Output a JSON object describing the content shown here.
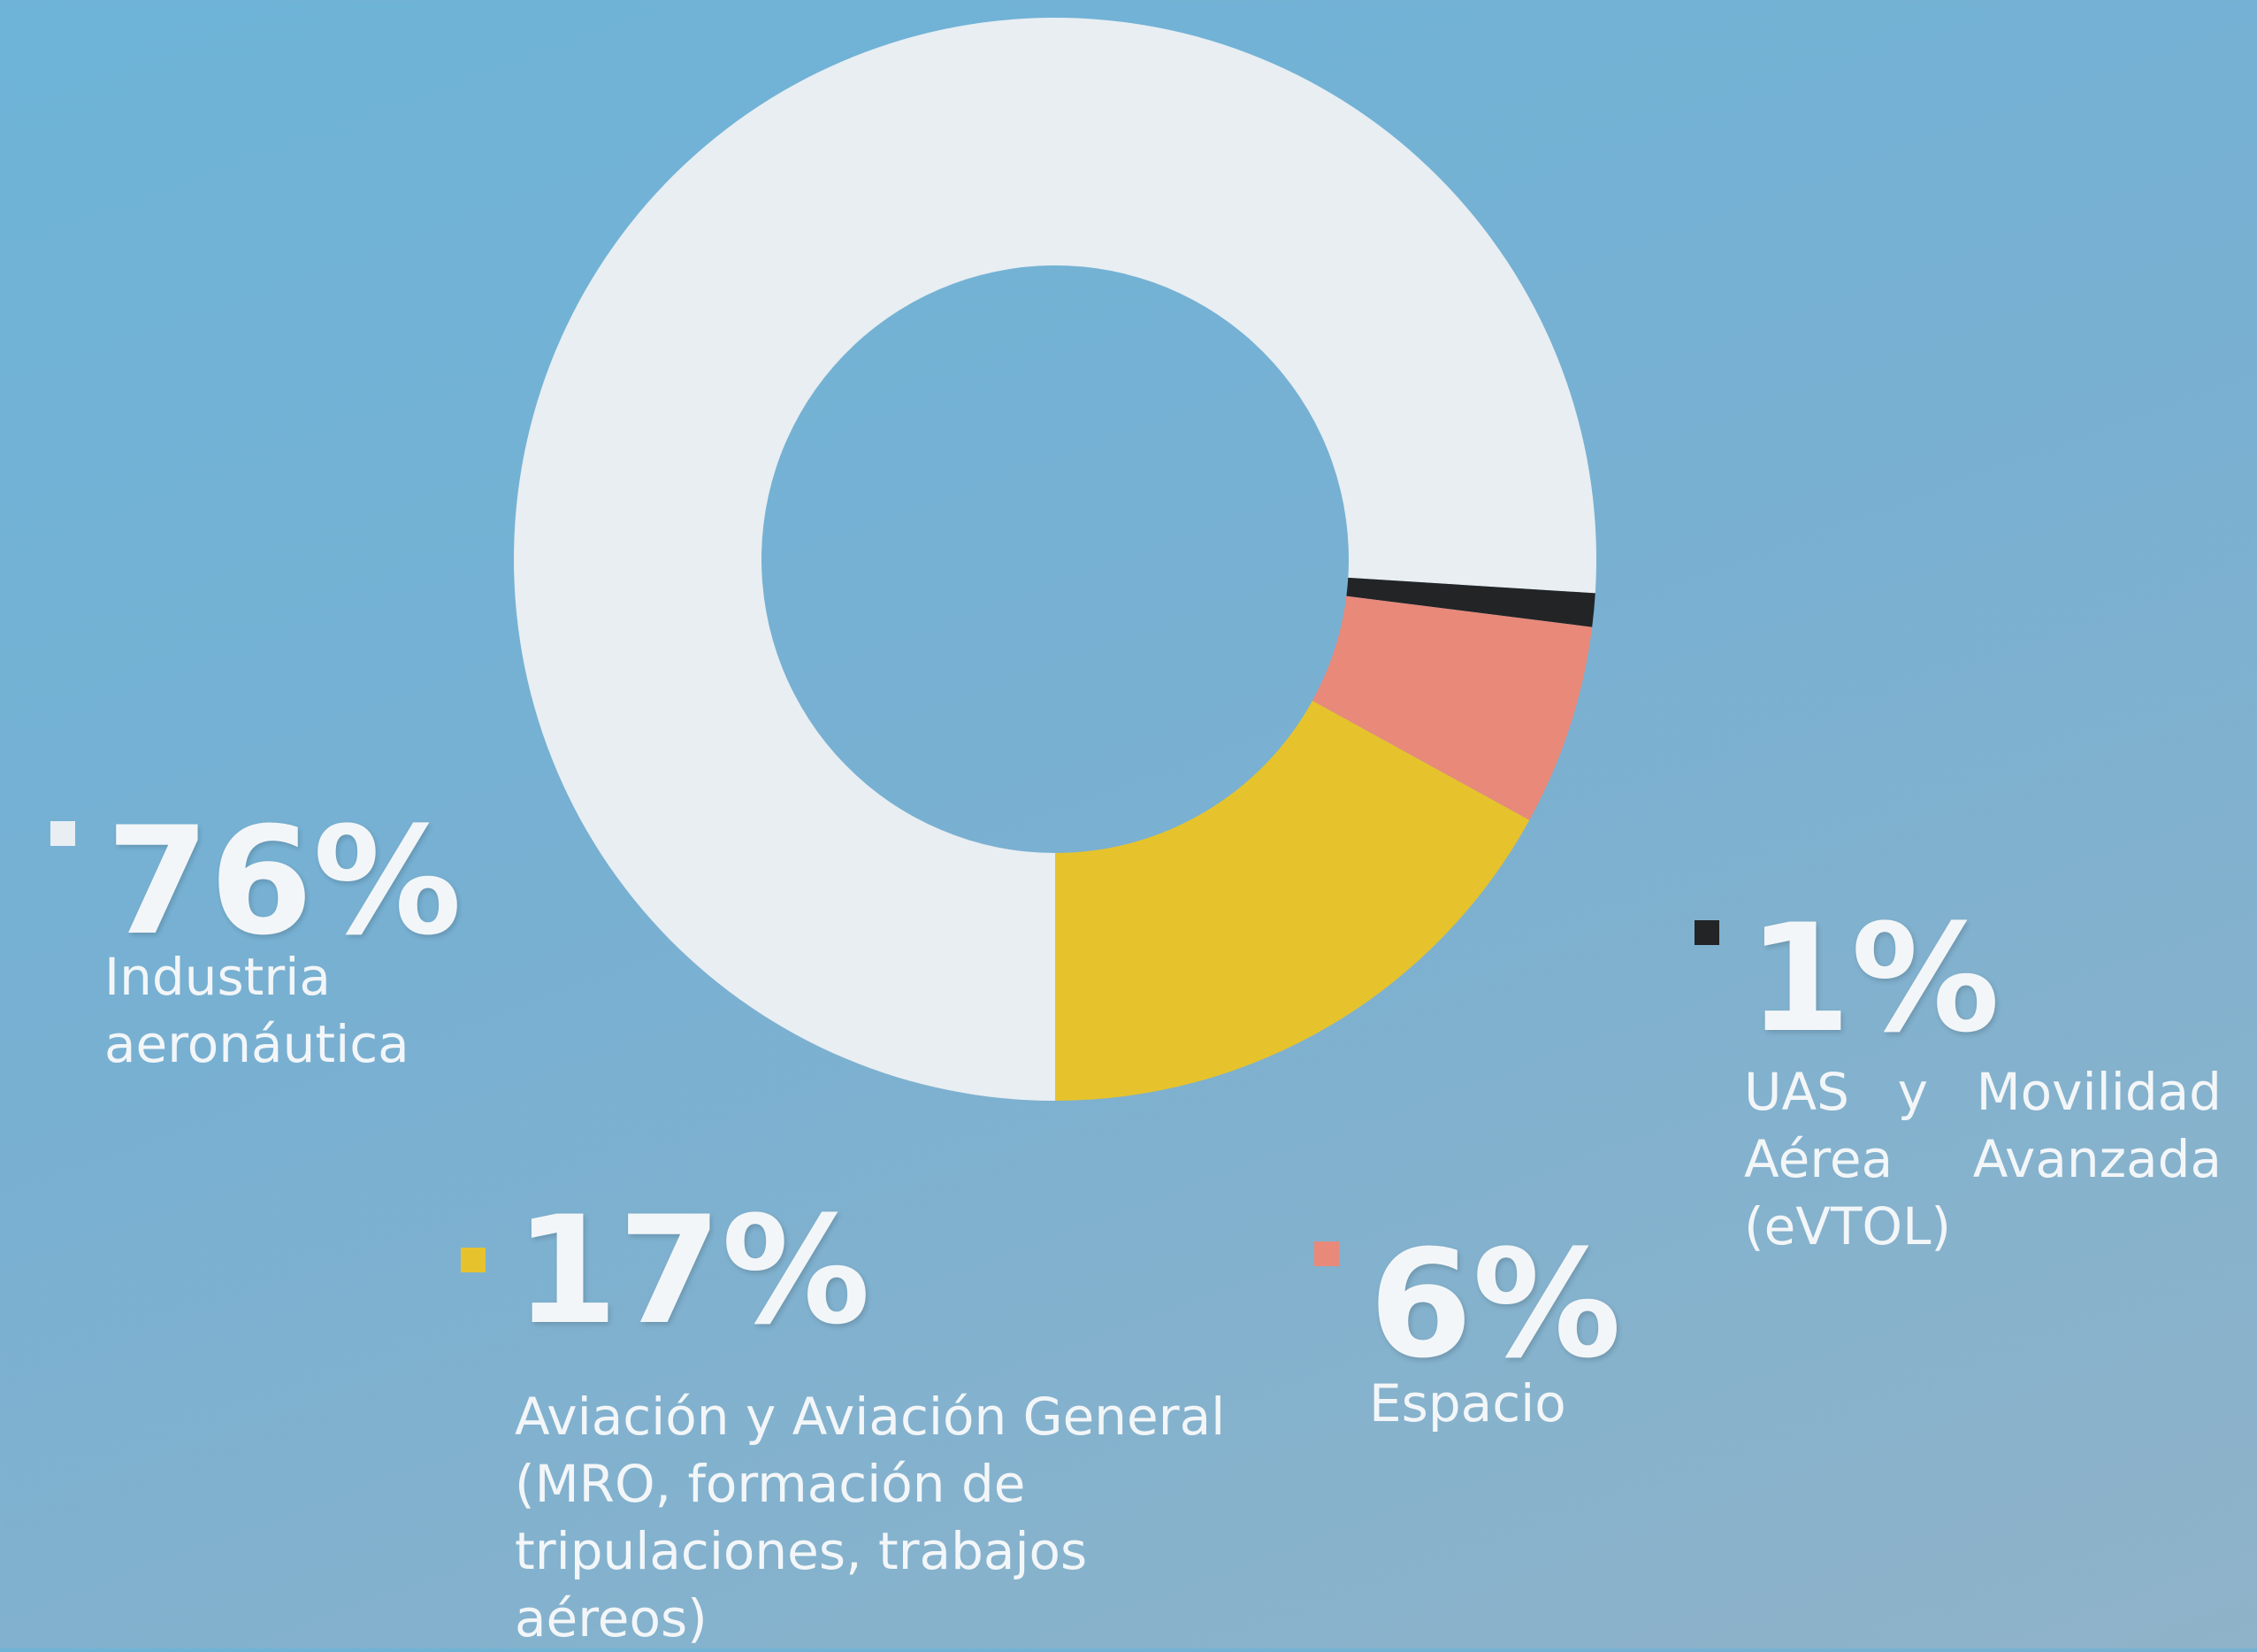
{
  "chart_data": {
    "type": "donut",
    "categories": [
      "Industria aeronáutica",
      "UAS y Movilidad Aérea Avanzada (eVTOL)",
      "Espacio",
      "Aviación y Aviación General (MRO, formación de tripulaciones, trabajos aéreos)"
    ],
    "values": [
      76,
      1,
      6,
      17
    ],
    "value_labels": [
      "76%",
      "1%",
      "6%",
      "17%"
    ],
    "colors": [
      "#e8eef2",
      "#222426",
      "#e8897a",
      "#e6c32c"
    ]
  }
}
